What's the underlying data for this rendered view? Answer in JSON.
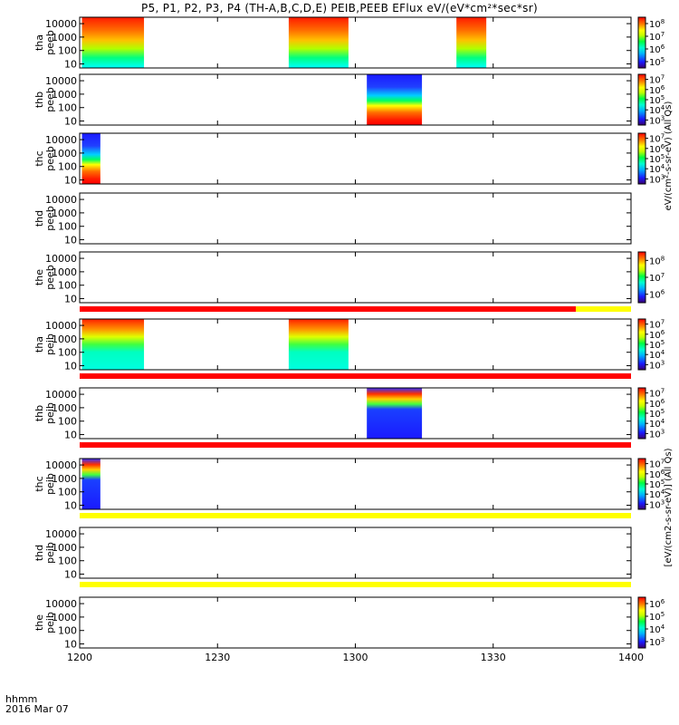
{
  "chart_data": {
    "type": "heatmap",
    "title": "P5, P1, P2, P3, P4 (TH-A,B,C,D,E) PEIB,PEEB EFlux eV/(eV*cm²*sec*sr)",
    "x_axis": {
      "ticks": [
        "1200",
        "1230",
        "1300",
        "1330",
        "1400"
      ],
      "tick_values_minutes": [
        0,
        30,
        60,
        90,
        120
      ],
      "range_minutes": [
        0,
        120
      ],
      "label_line1": "hhmm",
      "label_line2": "2016 Mar 07"
    },
    "y_axis": {
      "scale": "log",
      "range_eV": [
        5,
        30000
      ],
      "ticks": [
        "10",
        "100",
        "1000",
        "10000"
      ],
      "tick_values": [
        10,
        100,
        1000,
        10000
      ]
    },
    "colorbar_labels": {
      "electron": "eV/(cm²-s-sr-eV) (All Qs)",
      "ion": "[eV/(cm2-s-sr-eV)] (All Qs)"
    },
    "panels": [
      {
        "label": "tha peeb",
        "colorbar": {
          "exponents": [
            5,
            6,
            7,
            8
          ]
        },
        "intervals": [
          {
            "start": 0.5,
            "end": 14,
            "style": "warm"
          },
          {
            "start": 45.5,
            "end": 58.5,
            "style": "warm"
          },
          {
            "start": 82,
            "end": 88.5,
            "style": "warm"
          }
        ],
        "mode_bar": null
      },
      {
        "label": "thb peeb",
        "colorbar": {
          "exponents": [
            3,
            4,
            5,
            6,
            7
          ]
        },
        "intervals": [
          {
            "start": 62.5,
            "end": 74.5,
            "style": "full"
          }
        ],
        "mode_bar": null
      },
      {
        "label": "thc peeb",
        "colorbar": {
          "exponents": [
            3,
            4,
            5,
            6,
            7
          ]
        },
        "intervals": [
          {
            "start": 0.5,
            "end": 4.5,
            "style": "full"
          }
        ],
        "mode_bar": null
      },
      {
        "label": "thd peeb",
        "colorbar": null,
        "intervals": [],
        "mode_bar": null
      },
      {
        "label": "the peeb",
        "colorbar": {
          "exponents": [
            6,
            7,
            8
          ]
        },
        "intervals": [],
        "mode_bar": [
          {
            "start": 0,
            "end": 108,
            "color": "#ff0000"
          },
          {
            "start": 108,
            "end": 120,
            "color": "#ffff00"
          }
        ]
      },
      {
        "label": "tha peib",
        "colorbar": {
          "exponents": [
            3,
            4,
            5,
            6,
            7
          ]
        },
        "intervals": [
          {
            "start": 0.5,
            "end": 14,
            "style": "ion"
          },
          {
            "start": 45.5,
            "end": 58.5,
            "style": "ion"
          }
        ],
        "mode_bar": [
          {
            "start": 0,
            "end": 120,
            "color": "#ff0000"
          }
        ]
      },
      {
        "label": "thb peib",
        "colorbar": {
          "exponents": [
            3,
            4,
            5,
            6,
            7
          ]
        },
        "intervals": [
          {
            "start": 62.5,
            "end": 74.5,
            "style": "ionfull"
          }
        ],
        "mode_bar": [
          {
            "start": 0,
            "end": 120,
            "color": "#ff0000"
          }
        ]
      },
      {
        "label": "thc peib",
        "colorbar": {
          "exponents": [
            3,
            4,
            5,
            6,
            7
          ]
        },
        "intervals": [
          {
            "start": 0.5,
            "end": 4.5,
            "style": "ionfull"
          }
        ],
        "mode_bar": [
          {
            "start": 0,
            "end": 120,
            "color": "#ffff00"
          }
        ]
      },
      {
        "label": "thd peib",
        "colorbar": null,
        "intervals": [],
        "mode_bar": [
          {
            "start": 0,
            "end": 120,
            "color": "#ffff00"
          }
        ]
      },
      {
        "label": "the peib",
        "colorbar": {
          "exponents": [
            3,
            4,
            5,
            6
          ]
        },
        "intervals": [],
        "mode_bar": null
      }
    ]
  }
}
